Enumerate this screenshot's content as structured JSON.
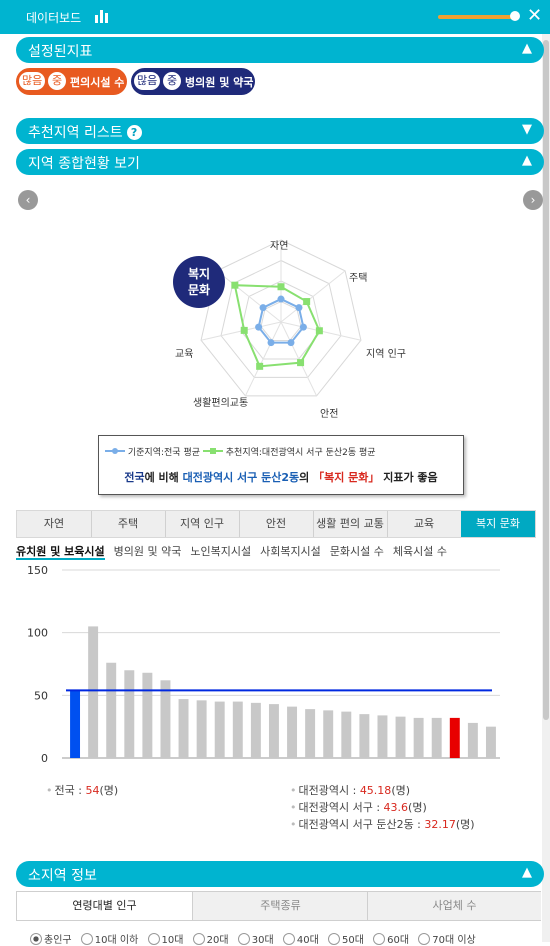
{
  "header": {
    "title": "데이터보드",
    "close_icon": "close-icon",
    "chart_icon": "bar-chart-icon"
  },
  "sections": {
    "set_indicators": "설정된지표",
    "recommended": "추천지역 리스트",
    "overview": "지역 종합현황 보기",
    "subregion": "소지역 정보"
  },
  "arrows": {
    "up": "▲",
    "down": "▼",
    "help": "?",
    "close": "✕",
    "prev": "‹",
    "next": "›"
  },
  "chips": [
    {
      "p1": "많음",
      "p2": "중",
      "label": "편의시설 수",
      "color": "#e85a20"
    },
    {
      "p1": "많음",
      "p2": "중",
      "label": "병의원 및 약국",
      "color": "#1f2a7a"
    }
  ],
  "radar": {
    "badge_line1": "복지",
    "badge_line2": "문화",
    "labels": [
      "자연",
      "주택",
      "지역 인구",
      "안전",
      "생활편의교통",
      "교육",
      "복지 문화"
    ],
    "baseline": [
      0.28,
      0.28,
      0.28,
      0.28,
      0.28,
      0.28,
      0.28
    ],
    "recommended": [
      0.43,
      0.4,
      0.48,
      0.55,
      0.6,
      0.46,
      0.72
    ]
  },
  "legend": {
    "baseline": "기준지역:전국 평균",
    "recommended": "추천지역:대전광역시 서구 둔산2동 평균",
    "s1": "전국",
    "s2": "에 비해 ",
    "s3": "대전광역시 서구 둔산2동",
    "s4": "의 ",
    "s5": "「복지 문화」",
    "s6": " 지표가 좋음"
  },
  "tabs": [
    "자연",
    "주택",
    "지역 인구",
    "안전",
    "생활 편의 교통",
    "교육",
    "복지 문화"
  ],
  "subtabs": [
    "유치원 및 보육시설",
    "병의원 및 약국",
    "노인복지시설",
    "사회복지시설",
    "문화시설 수",
    "체육시설 수"
  ],
  "chart_data": {
    "type": "bar",
    "ylim": [
      0,
      150
    ],
    "yticks": [
      0,
      50,
      100,
      150
    ],
    "values": [
      54,
      105,
      76,
      70,
      68,
      62,
      47,
      46,
      45,
      45,
      44,
      43,
      41,
      39,
      38,
      37,
      35,
      34,
      33,
      32,
      32,
      32,
      28,
      25
    ],
    "reference_line": 54,
    "highlight_first_color": "#0050f0",
    "highlight_index": 21,
    "highlight_color": "#e80000",
    "default_color": "#c8c8c8",
    "line_color": "#0028e0"
  },
  "stats": {
    "national_label": "전국 : ",
    "national_value": "54",
    "national_unit": "(명)",
    "city_label": "대전광역시 : ",
    "city_value": "45.18",
    "city_unit": "(명)",
    "gu_label": "대전광역시 서구 : ",
    "gu_value": "43.6",
    "gu_unit": "(명)",
    "dong_label": "대전광역시 서구 둔산2동 : ",
    "dong_value": "32.17",
    "dong_unit": "(명)"
  },
  "panel_tabs": [
    "연령대별 인구",
    "주택종류",
    "사업체 수"
  ],
  "radios": [
    "총인구",
    "10대 이하",
    "10대",
    "20대",
    "30대",
    "40대",
    "50대",
    "60대",
    "70대 이상"
  ]
}
